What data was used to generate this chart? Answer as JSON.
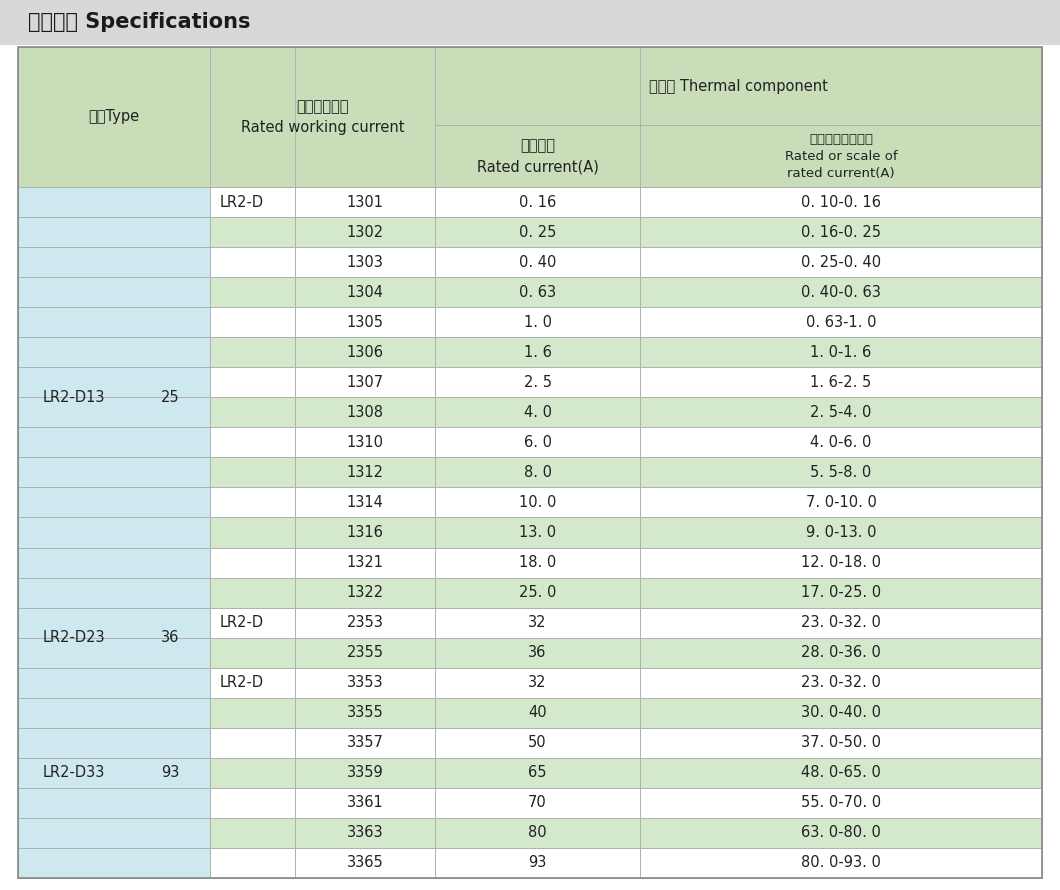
{
  "title": "技术参数 Specifications",
  "title_bg": "#d8d8d8",
  "header_bg": "#c8ddb8",
  "light_blue_bg": "#cee8f0",
  "green_row_bg": "#d4e8cc",
  "white_row_bg": "#ffffff",
  "line_color": "#b0b0b0",
  "text_color": "#222222",
  "rows": [
    {
      "type_main": "LR2-D13",
      "type_sub": "25",
      "lr2d": "LR2-D",
      "code": "1301",
      "rated": "0. 16",
      "range": "0. 10-0. 16",
      "green": false
    },
    {
      "type_main": "",
      "type_sub": "",
      "lr2d": "",
      "code": "1302",
      "rated": "0. 25",
      "range": "0. 16-0. 25",
      "green": true
    },
    {
      "type_main": "",
      "type_sub": "",
      "lr2d": "",
      "code": "1303",
      "rated": "0. 40",
      "range": "0. 25-0. 40",
      "green": false
    },
    {
      "type_main": "",
      "type_sub": "",
      "lr2d": "",
      "code": "1304",
      "rated": "0. 63",
      "range": "0. 40-0. 63",
      "green": true
    },
    {
      "type_main": "",
      "type_sub": "",
      "lr2d": "",
      "code": "1305",
      "rated": "1. 0",
      "range": "0. 63-1. 0",
      "green": false
    },
    {
      "type_main": "",
      "type_sub": "",
      "lr2d": "",
      "code": "1306",
      "rated": "1. 6",
      "range": "1. 0-1. 6",
      "green": true
    },
    {
      "type_main": "",
      "type_sub": "",
      "lr2d": "",
      "code": "1307",
      "rated": "2. 5",
      "range": "1. 6-2. 5",
      "green": false
    },
    {
      "type_main": "",
      "type_sub": "",
      "lr2d": "",
      "code": "1308",
      "rated": "4. 0",
      "range": "2. 5-4. 0",
      "green": true
    },
    {
      "type_main": "",
      "type_sub": "",
      "lr2d": "",
      "code": "1310",
      "rated": "6. 0",
      "range": "4. 0-6. 0",
      "green": false
    },
    {
      "type_main": "",
      "type_sub": "",
      "lr2d": "",
      "code": "1312",
      "rated": "8. 0",
      "range": "5. 5-8. 0",
      "green": true
    },
    {
      "type_main": "",
      "type_sub": "",
      "lr2d": "",
      "code": "1314",
      "rated": "10. 0",
      "range": "7. 0-10. 0",
      "green": false
    },
    {
      "type_main": "",
      "type_sub": "",
      "lr2d": "",
      "code": "1316",
      "rated": "13. 0",
      "range": "9. 0-13. 0",
      "green": true
    },
    {
      "type_main": "",
      "type_sub": "",
      "lr2d": "",
      "code": "1321",
      "rated": "18. 0",
      "range": "12. 0-18. 0",
      "green": false
    },
    {
      "type_main": "",
      "type_sub": "",
      "lr2d": "",
      "code": "1322",
      "rated": "25. 0",
      "range": "17. 0-25. 0",
      "green": true
    },
    {
      "type_main": "LR2-D23",
      "type_sub": "36",
      "lr2d": "LR2-D",
      "code": "2353",
      "rated": "32",
      "range": "23. 0-32. 0",
      "green": false
    },
    {
      "type_main": "",
      "type_sub": "",
      "lr2d": "",
      "code": "2355",
      "rated": "36",
      "range": "28. 0-36. 0",
      "green": true
    },
    {
      "type_main": "LR2-D33",
      "type_sub": "93",
      "lr2d": "LR2-D",
      "code": "3353",
      "rated": "32",
      "range": "23. 0-32. 0",
      "green": false
    },
    {
      "type_main": "",
      "type_sub": "",
      "lr2d": "",
      "code": "3355",
      "rated": "40",
      "range": "30. 0-40. 0",
      "green": true
    },
    {
      "type_main": "",
      "type_sub": "",
      "lr2d": "",
      "code": "3357",
      "rated": "50",
      "range": "37. 0-50. 0",
      "green": false
    },
    {
      "type_main": "",
      "type_sub": "",
      "lr2d": "",
      "code": "3359",
      "rated": "65",
      "range": "48. 0-65. 0",
      "green": true
    },
    {
      "type_main": "",
      "type_sub": "",
      "lr2d": "",
      "code": "3361",
      "rated": "70",
      "range": "55. 0-70. 0",
      "green": false
    },
    {
      "type_main": "",
      "type_sub": "",
      "lr2d": "",
      "code": "3363",
      "rated": "80",
      "range": "63. 0-80. 0",
      "green": true
    },
    {
      "type_main": "",
      "type_sub": "",
      "lr2d": "",
      "code": "3365",
      "rated": "93",
      "range": "80. 0-93. 0",
      "green": false
    }
  ],
  "group_spans": [
    {
      "label_main": "LR2-D13",
      "label_sub": "25",
      "start": 0,
      "end": 13
    },
    {
      "label_main": "LR2-D23",
      "label_sub": "36",
      "start": 14,
      "end": 15
    },
    {
      "label_main": "LR2-D33",
      "label_sub": "93",
      "start": 16,
      "end": 22
    }
  ]
}
